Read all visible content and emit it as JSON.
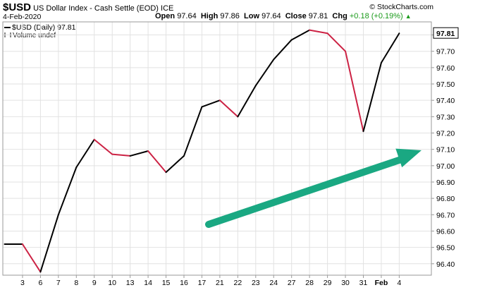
{
  "header": {
    "ticker": "$USD",
    "name": "US Dollar Index - Cash Settle (EOD)",
    "exchange": "ICE",
    "credit": "© StockCharts.com",
    "date": "4-Feb-2020",
    "open_label": "Open",
    "open": "97.64",
    "high_label": "High",
    "high": "97.86",
    "low_label": "Low",
    "low": "97.64",
    "close_label": "Close",
    "close": "97.81",
    "chg_label": "Chg",
    "chg": "+0.18 (+0.19%)",
    "chg_color": "#1a9a1a"
  },
  "legend": {
    "series": "$USD (Daily) 97.81",
    "volume": "Volume undef"
  },
  "chart_data": {
    "type": "line",
    "series_name": "$USD (Daily)",
    "up_color": "#000000",
    "down_color": "#cc2244",
    "grid": true,
    "ylim": [
      96.33,
      97.88
    ],
    "y_ticks": [
      96.4,
      96.5,
      96.6,
      96.7,
      96.8,
      96.9,
      97.0,
      97.1,
      97.2,
      97.3,
      97.4,
      97.5,
      97.6,
      97.7,
      97.8
    ],
    "y_tick_labels": [
      "96.40",
      "96.50",
      "96.60",
      "96.70",
      "96.80",
      "96.90",
      "97.00",
      "97.10",
      "97.20",
      "97.30",
      "97.40",
      "97.50",
      "97.60",
      "97.70",
      "97.80"
    ],
    "x_labels": [
      "3",
      "6",
      "7",
      "8",
      "9",
      "10",
      "13",
      "14",
      "15",
      "16",
      "17",
      "21",
      "22",
      "23",
      "24",
      "27",
      "28",
      "29",
      "30",
      "31",
      "Feb",
      "4"
    ],
    "points": [
      {
        "label": "",
        "value": 96.52
      },
      {
        "label": "3",
        "value": 96.52
      },
      {
        "label": "6",
        "value": 96.35
      },
      {
        "label": "7",
        "value": 96.7
      },
      {
        "label": "8",
        "value": 96.99
      },
      {
        "label": "9",
        "value": 97.16
      },
      {
        "label": "10",
        "value": 97.07
      },
      {
        "label": "13",
        "value": 97.06
      },
      {
        "label": "14",
        "value": 97.09
      },
      {
        "label": "15",
        "value": 96.96
      },
      {
        "label": "16",
        "value": 97.06
      },
      {
        "label": "17",
        "value": 97.36
      },
      {
        "label": "21",
        "value": 97.4
      },
      {
        "label": "22",
        "value": 97.3
      },
      {
        "label": "23",
        "value": 97.49
      },
      {
        "label": "24",
        "value": 97.65
      },
      {
        "label": "27",
        "value": 97.77
      },
      {
        "label": "28",
        "value": 97.83
      },
      {
        "label": "29",
        "value": 97.81
      },
      {
        "label": "30",
        "value": 97.7
      },
      {
        "label": "31",
        "value": 97.21
      },
      {
        "label": "Feb",
        "value": 97.63
      },
      {
        "label": "4",
        "value": 97.81
      }
    ],
    "last_value_label": "97.81",
    "trend_arrow_color": "#1aa882"
  }
}
